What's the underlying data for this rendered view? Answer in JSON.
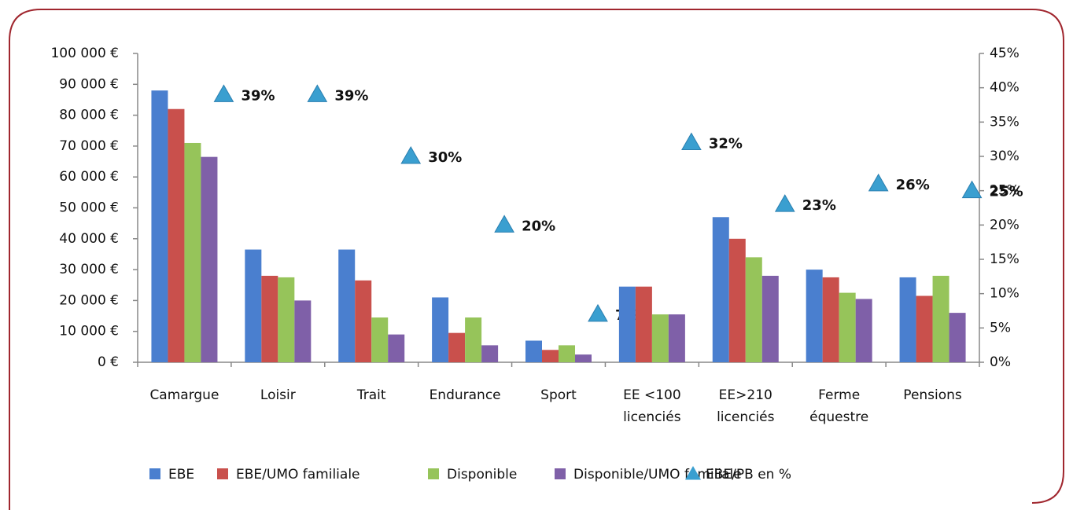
{
  "chart_data": {
    "type": "bar",
    "categories": [
      "Camargue",
      "Loisir",
      "Trait",
      "Endurance",
      "Sport",
      "EE <100 licenciés",
      "EE>210 licenciés",
      "Ferme équestre",
      "Pensions"
    ],
    "series": [
      {
        "name": "EBE",
        "color": "#4a7fcf",
        "values": [
          88000,
          36500,
          36500,
          21000,
          7000,
          24500,
          47000,
          30000,
          27500
        ]
      },
      {
        "name": "EBE/UMO familiale",
        "color": "#c9504c",
        "values": [
          82000,
          28000,
          26500,
          9500,
          4000,
          24500,
          40000,
          27500,
          21500
        ]
      },
      {
        "name": "Disponible",
        "color": "#96c45a",
        "values": [
          71000,
          27500,
          14500,
          14500,
          5500,
          15500,
          34000,
          22500,
          28000
        ]
      },
      {
        "name": "Disponible/UMO familiale",
        "color": "#7f60a8",
        "values": [
          66500,
          20000,
          9000,
          5500,
          2500,
          15500,
          28000,
          20500,
          16000
        ]
      },
      {
        "name": "EBE/PB en %",
        "color": "#3a9fd0",
        "type": "scatter",
        "axis": "y2",
        "values": [
          39,
          39,
          30,
          20,
          7,
          32,
          23,
          26,
          25
        ],
        "value_labels": [
          "39%",
          "39%",
          "30%",
          "20%",
          "7%",
          "32%",
          "23%",
          "26%",
          "25%"
        ]
      }
    ],
    "ylim": [
      0,
      100000
    ],
    "yticks": [
      {
        "value": 0,
        "label": "0 €"
      },
      {
        "value": 10000,
        "label": "10 000 €"
      },
      {
        "value": 20000,
        "label": "20 000 €"
      },
      {
        "value": 30000,
        "label": "30 000 €"
      },
      {
        "value": 40000,
        "label": "40 000 €"
      },
      {
        "value": 50000,
        "label": "50 000 €"
      },
      {
        "value": 60000,
        "label": "60 000 €"
      },
      {
        "value": 70000,
        "label": "70 000 €"
      },
      {
        "value": 80000,
        "label": "80 000 €"
      },
      {
        "value": 90000,
        "label": "90 000 €"
      },
      {
        "value": 100000,
        "label": "100 000 €"
      }
    ],
    "y2lim": [
      0,
      45
    ],
    "y2ticks": [
      {
        "value": 0,
        "label": "0%"
      },
      {
        "value": 5,
        "label": "5%"
      },
      {
        "value": 10,
        "label": "10%"
      },
      {
        "value": 15,
        "label": "15%"
      },
      {
        "value": 20,
        "label": "20%"
      },
      {
        "value": 25,
        "label": "25%"
      },
      {
        "value": 30,
        "label": "30%"
      },
      {
        "value": 35,
        "label": "35%"
      },
      {
        "value": 40,
        "label": "40%"
      },
      {
        "value": 45,
        "label": "45%"
      }
    ],
    "legend": "bottom"
  }
}
